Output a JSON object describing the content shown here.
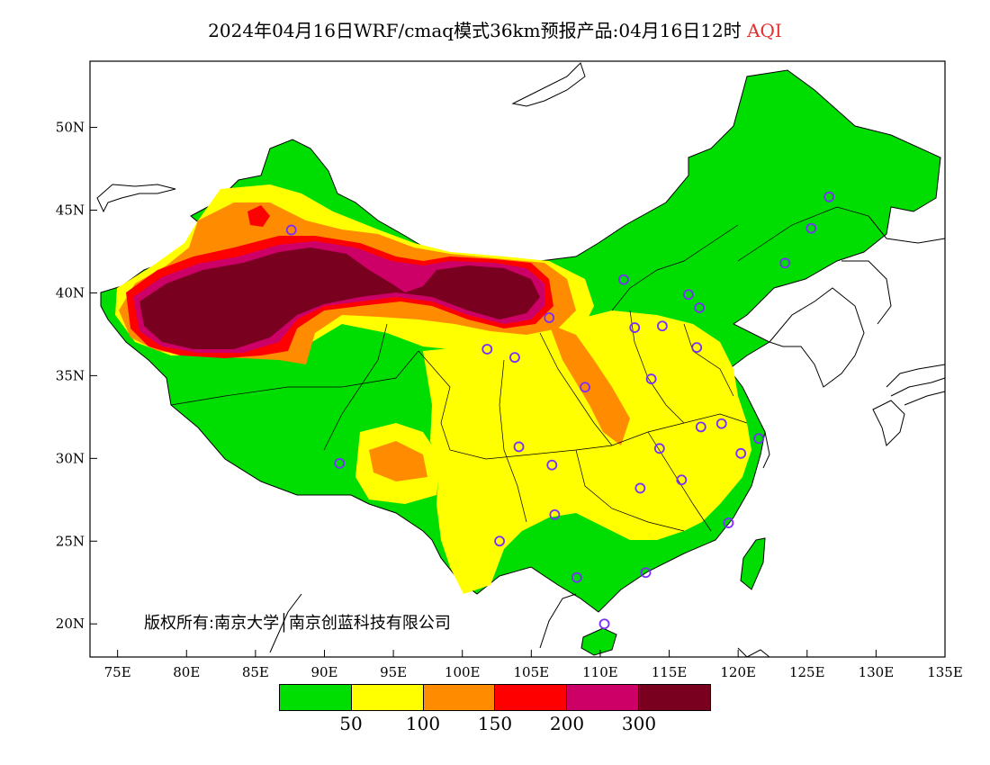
{
  "title": {
    "main": "2024年04月16日WRF/cmaq模式36km预报产品:04月16日12时",
    "variable": "AQI",
    "variable_color": "#e03030"
  },
  "axes": {
    "lat_labels": [
      "50N",
      "45N",
      "40N",
      "35N",
      "30N",
      "25N",
      "20N"
    ],
    "lon_labels": [
      "75E",
      "80E",
      "85E",
      "90E",
      "95E",
      "100E",
      "105E",
      "110E",
      "115E",
      "120E",
      "125E",
      "130E",
      "135E"
    ],
    "lon_range": [
      73,
      135
    ],
    "lat_range": [
      18,
      54
    ]
  },
  "copyright": "版权所有:南京大学│南京创蓝科技有限公司",
  "legend": {
    "colors": [
      "#00dd00",
      "#ffff00",
      "#ff8c00",
      "#ff0000",
      "#cc0066",
      "#7a0020"
    ],
    "labels": [
      "50",
      "100",
      "150",
      "200",
      "300"
    ]
  },
  "palette": {
    "green": "#00dd00",
    "yellow": "#ffff00",
    "orange": "#ff8c00",
    "red": "#ff0000",
    "magenta": "#cc0066",
    "maroon": "#7a0020",
    "station_marker": "#7b2cff"
  },
  "stations": [
    {
      "lon": 87.6,
      "lat": 43.8
    },
    {
      "lon": 91.1,
      "lat": 29.7
    },
    {
      "lon": 101.8,
      "lat": 36.6
    },
    {
      "lon": 103.8,
      "lat": 36.1
    },
    {
      "lon": 106.3,
      "lat": 38.5
    },
    {
      "lon": 111.7,
      "lat": 40.8
    },
    {
      "lon": 112.5,
      "lat": 37.9
    },
    {
      "lon": 114.5,
      "lat": 38.0
    },
    {
      "lon": 116.4,
      "lat": 39.9
    },
    {
      "lon": 117.2,
      "lat": 39.1
    },
    {
      "lon": 117.0,
      "lat": 36.7
    },
    {
      "lon": 113.7,
      "lat": 34.8
    },
    {
      "lon": 108.9,
      "lat": 34.3
    },
    {
      "lon": 104.1,
      "lat": 30.7
    },
    {
      "lon": 106.5,
      "lat": 29.6
    },
    {
      "lon": 106.7,
      "lat": 26.6
    },
    {
      "lon": 102.7,
      "lat": 25.0
    },
    {
      "lon": 108.3,
      "lat": 22.8
    },
    {
      "lon": 113.3,
      "lat": 23.1
    },
    {
      "lon": 110.3,
      "lat": 20.0
    },
    {
      "lon": 112.9,
      "lat": 28.2
    },
    {
      "lon": 114.3,
      "lat": 30.6
    },
    {
      "lon": 115.9,
      "lat": 28.7
    },
    {
      "lon": 117.3,
      "lat": 31.9
    },
    {
      "lon": 118.8,
      "lat": 32.1
    },
    {
      "lon": 120.2,
      "lat": 30.3
    },
    {
      "lon": 121.5,
      "lat": 31.2
    },
    {
      "lon": 119.3,
      "lat": 26.1
    },
    {
      "lon": 123.4,
      "lat": 41.8
    },
    {
      "lon": 125.3,
      "lat": 43.9
    },
    {
      "lon": 126.6,
      "lat": 45.8
    }
  ]
}
